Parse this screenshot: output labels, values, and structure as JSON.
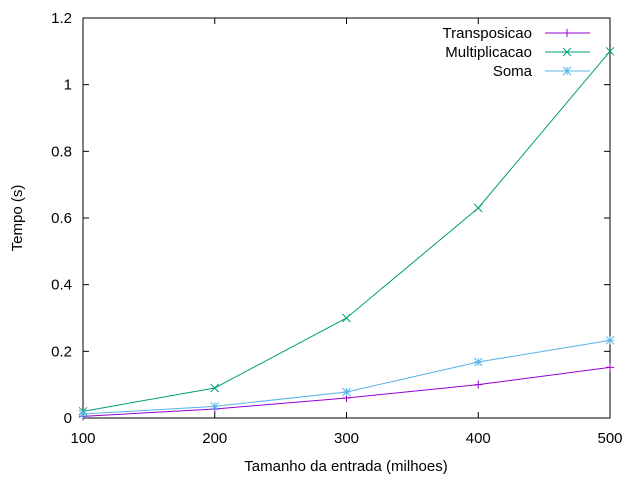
{
  "chart_data": {
    "type": "line",
    "xlabel": "Tamanho da entrada (milhoes)",
    "ylabel": "Tempo (s)",
    "xlim": [
      100,
      500
    ],
    "ylim": [
      0,
      1.2
    ],
    "xticks": [
      100,
      200,
      300,
      400,
      500
    ],
    "yticks": [
      0,
      0.2,
      0.4,
      0.6,
      0.8,
      1,
      1.2
    ],
    "ytick_labels": [
      "0",
      "0.2",
      "0.4",
      "0.6",
      "0.8",
      "1",
      "1.2"
    ],
    "grid": false,
    "legend_position": "top-right",
    "x": [
      100,
      200,
      300,
      400,
      500
    ],
    "series": [
      {
        "name": "Transposicao",
        "marker": "plus",
        "color": "#9400d3",
        "values": [
          0.005,
          0.027,
          0.06,
          0.1,
          0.152
        ]
      },
      {
        "name": "Multiplicacao",
        "marker": "cross",
        "color": "#009e73",
        "values": [
          0.02,
          0.09,
          0.3,
          0.63,
          1.1
        ]
      },
      {
        "name": "Soma",
        "marker": "star",
        "color": "#56b4e9",
        "values": [
          0.012,
          0.035,
          0.078,
          0.168,
          0.233
        ]
      }
    ]
  }
}
